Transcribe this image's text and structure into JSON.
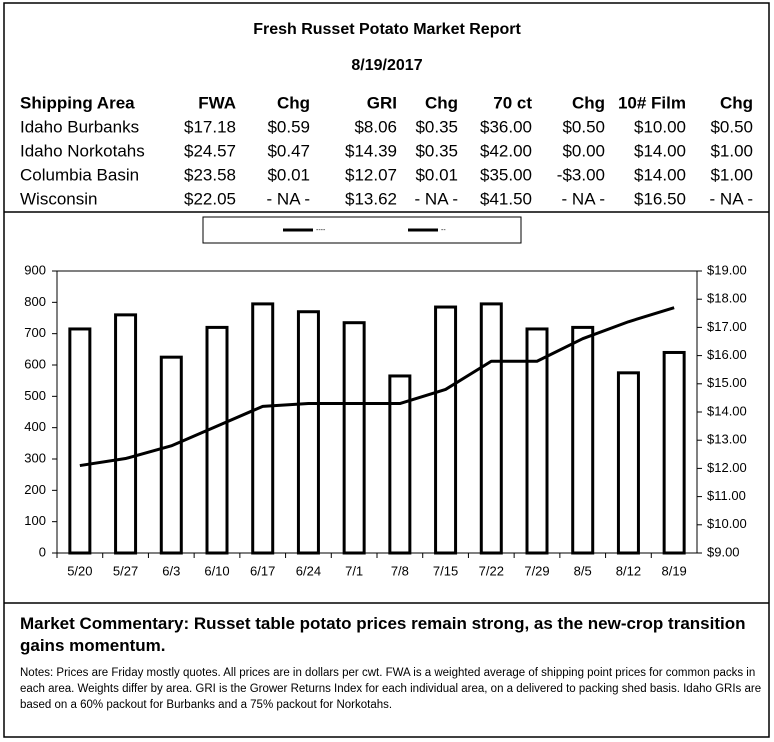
{
  "header": {
    "title": "Fresh Russet Potato Market Report",
    "date": "8/19/2017"
  },
  "table": {
    "columns": [
      "Shipping Area",
      "FWA",
      "Chg",
      "GRI",
      "Chg",
      "70 ct",
      "Chg",
      "10# Film",
      "Chg"
    ],
    "rows": [
      [
        "Idaho Burbanks",
        "$17.18",
        "$0.59",
        "$8.06",
        "$0.35",
        "$36.00",
        "$0.50",
        "$10.00",
        "$0.50"
      ],
      [
        "Idaho Norkotahs",
        "$24.57",
        "$0.47",
        "$14.39",
        "$0.35",
        "$42.00",
        "$0.00",
        "$14.00",
        "$1.00"
      ],
      [
        "Columbia Basin",
        "$23.58",
        "$0.01",
        "$12.07",
        "$0.01",
        "$35.00",
        "-$3.00",
        "$14.00",
        "$1.00"
      ],
      [
        "Wisconsin",
        "$22.05",
        "- NA -",
        "$13.62",
        "- NA -",
        "$41.50",
        "- NA -",
        "$16.50",
        "- NA -"
      ]
    ]
  },
  "chart_data": {
    "type": "combo",
    "categories": [
      "5/20",
      "5/27",
      "6/3",
      "6/10",
      "6/17",
      "6/24",
      "7/1",
      "7/8",
      "7/15",
      "7/22",
      "7/29",
      "8/5",
      "8/12",
      "8/19"
    ],
    "series": [
      {
        "name": "----",
        "type": "bar",
        "color": "#000000",
        "values": [
          715,
          760,
          625,
          720,
          795,
          770,
          735,
          565,
          785,
          795,
          715,
          720,
          575,
          640
        ]
      },
      {
        "name": "--",
        "type": "line",
        "axis": "y2",
        "color": "#000000",
        "values": [
          12.1,
          12.35,
          12.8,
          13.5,
          14.2,
          14.3,
          14.3,
          14.3,
          14.8,
          15.8,
          15.8,
          16.6,
          17.2,
          17.7
        ]
      }
    ],
    "ylim": [
      0,
      900
    ],
    "yticks": [
      0,
      100,
      200,
      300,
      400,
      500,
      600,
      700,
      800,
      900
    ],
    "y2lim": [
      9,
      19
    ],
    "y2ticks": [
      {
        "value": 9,
        "label": "$9.00"
      },
      {
        "value": 10,
        "label": "$10.00"
      },
      {
        "value": 11,
        "label": "$11.00"
      },
      {
        "value": 12,
        "label": "$12.00"
      },
      {
        "value": 13,
        "label": "$13.00"
      },
      {
        "value": 14,
        "label": "$14.00"
      },
      {
        "value": 15,
        "label": "$15.00"
      },
      {
        "value": 16,
        "label": "$16.00"
      },
      {
        "value": 17,
        "label": "$17.00"
      },
      {
        "value": 18,
        "label": "$18.00"
      },
      {
        "value": 19,
        "label": "$19.00"
      }
    ],
    "legend": "top"
  },
  "commentary": "Market Commentary: Russet table potato prices remain strong, as the new-crop transition gains momentum.",
  "notes": "Notes: Prices are Friday mostly quotes. All prices are in dollars per cwt. FWA is a weighted average of shipping point prices for  common packs in each area. Weights differ by area. GRI is the Grower Returns Index for each individual area, on a delivered to packing shed basis. Idaho GRIs are based on a 60% packout for Burbanks and a 75% packout for Norkotahs."
}
